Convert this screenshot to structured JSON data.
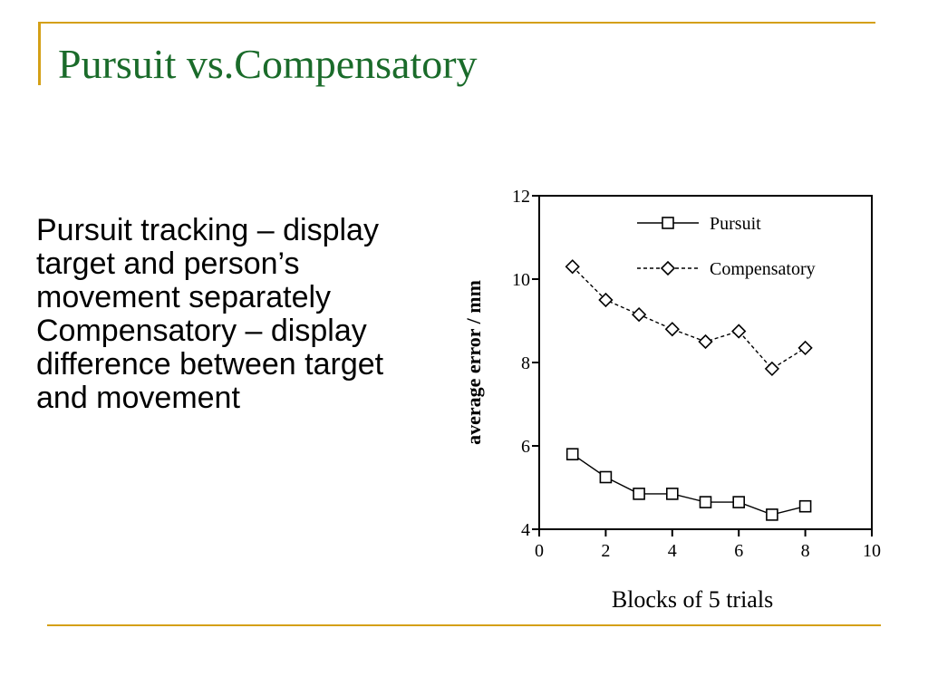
{
  "slide": {
    "title": "Pursuit vs.Compensatory",
    "bullets": [
      "Pursuit tracking – display target and person’s movement separately",
      "Compensatory – display difference between target and movement"
    ]
  },
  "colors": {
    "accent": "#d4a017",
    "title": "#1a6b2a"
  },
  "chart_data": {
    "type": "line",
    "xlabel": "Blocks of 5 trials",
    "ylabel": "average error / mm",
    "xlim": [
      0,
      10
    ],
    "ylim": [
      4,
      12
    ],
    "xticks": [
      "0",
      "2",
      "4",
      "6",
      "8",
      "10"
    ],
    "yticks": [
      "4",
      "6",
      "8",
      "10",
      "12"
    ],
    "legend_position": "top-right",
    "series": [
      {
        "name": "Pursuit",
        "marker": "square",
        "line": "solid",
        "x": [
          1,
          2,
          3,
          4,
          5,
          6,
          7,
          8
        ],
        "y": [
          5.8,
          5.25,
          4.85,
          4.85,
          4.65,
          4.65,
          4.35,
          4.55
        ]
      },
      {
        "name": "Compensatory",
        "marker": "diamond",
        "line": "dashed",
        "x": [
          1,
          2,
          3,
          4,
          5,
          6,
          7,
          8
        ],
        "y": [
          10.3,
          9.5,
          9.15,
          8.8,
          8.5,
          8.75,
          7.85,
          8.35
        ]
      }
    ]
  }
}
